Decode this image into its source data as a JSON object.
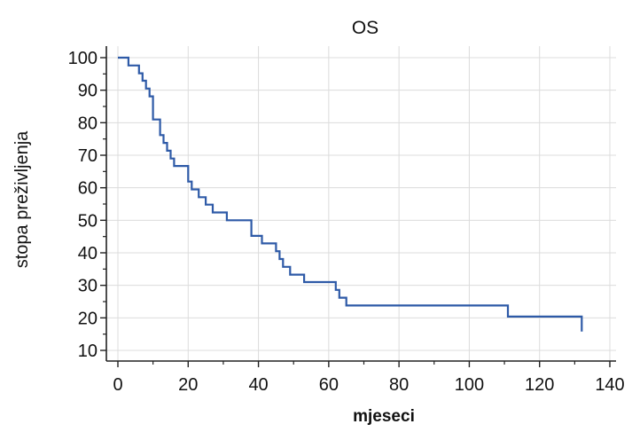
{
  "chart_data": {
    "type": "line",
    "title": "OS",
    "xlabel": "mjeseci",
    "ylabel": "stopa preživljenja",
    "xlim": [
      0,
      140
    ],
    "ylim": [
      10,
      100
    ],
    "xticks": [
      0,
      20,
      40,
      60,
      80,
      100,
      120,
      140
    ],
    "yticks": [
      10,
      20,
      30,
      40,
      50,
      60,
      70,
      80,
      90,
      100
    ],
    "xtick_labels": [
      "0",
      "20",
      "40",
      "60",
      "80",
      "100",
      "120",
      "140"
    ],
    "ytick_labels": [
      "10",
      "20",
      "30",
      "40",
      "50",
      "60",
      "70",
      "80",
      "90",
      "100"
    ],
    "grid": true,
    "step": true,
    "colors": {
      "series": "#2e5aa7",
      "grid": "#dcdcdc",
      "axis": "#222222"
    },
    "series": [
      {
        "x": [
          0,
          3,
          6,
          7,
          8,
          9,
          10,
          12,
          13,
          14,
          15,
          16,
          20,
          21,
          23,
          25,
          27,
          31,
          38,
          41,
          45,
          46,
          47,
          49,
          50,
          53,
          62,
          63,
          64,
          65,
          111,
          132,
          132
        ],
        "y": [
          100,
          97.6,
          95.2,
          92.9,
          90.5,
          88.1,
          81,
          76.2,
          73.8,
          71.4,
          69,
          66.7,
          61.9,
          59.5,
          57.1,
          54.8,
          52.4,
          50,
          45.2,
          42.9,
          40.5,
          38.1,
          35.7,
          33.3,
          33.3,
          31,
          28.6,
          26.2,
          26.2,
          23.8,
          20.4,
          20.4,
          15.8
        ]
      }
    ]
  }
}
